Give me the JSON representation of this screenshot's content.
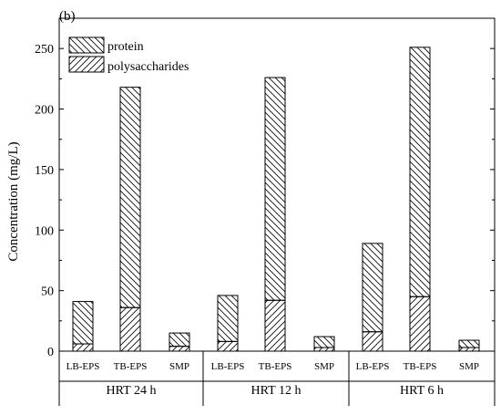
{
  "panel_label": "(b)",
  "chart_data": {
    "type": "bar",
    "stacked": true,
    "ylabel": "Concentration (mg/L)",
    "ylim": [
      0,
      275
    ],
    "yticks": [
      0,
      50,
      100,
      150,
      200,
      250
    ],
    "grid": false,
    "legend_position": "top-left",
    "categories": [
      "LB-EPS",
      "TB-EPS",
      "SMP",
      "LB-EPS",
      "TB-EPS",
      "SMP",
      "LB-EPS",
      "TB-EPS",
      "SMP"
    ],
    "groups": [
      {
        "label": "HRT 24 h",
        "categories": [
          "LB-EPS",
          "TB-EPS",
          "SMP"
        ]
      },
      {
        "label": "HRT 12 h",
        "categories": [
          "LB-EPS",
          "TB-EPS",
          "SMP"
        ]
      },
      {
        "label": "HRT 6 h",
        "categories": [
          "LB-EPS",
          "TB-EPS",
          "SMP"
        ]
      }
    ],
    "series": [
      {
        "name": "polysaccharides",
        "pattern": "forward-hatch",
        "values": [
          6,
          36,
          4,
          8,
          42,
          3,
          16,
          45,
          3
        ]
      },
      {
        "name": "protein",
        "pattern": "back-hatch",
        "values": [
          35,
          182,
          11,
          38,
          184,
          9,
          73,
          206,
          6
        ]
      }
    ],
    "totals": [
      41,
      218,
      15,
      46,
      226,
      12,
      89,
      251,
      9
    ]
  }
}
